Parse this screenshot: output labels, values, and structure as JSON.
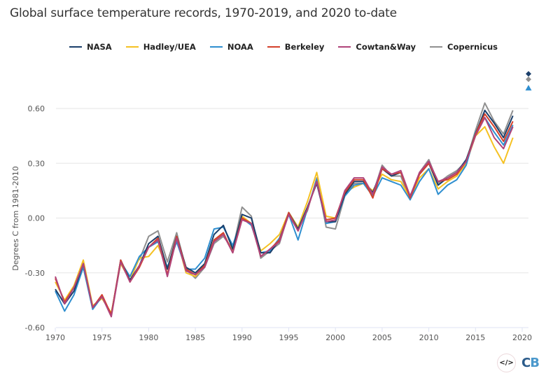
{
  "chart_data": {
    "type": "line",
    "title": "Global surface temperature records, 1970-2019, and 2020 to-date",
    "xlabel": "",
    "ylabel": "Degrees C from 1981-2010",
    "xlim": [
      1970,
      2020
    ],
    "ylim": [
      -0.6,
      0.6
    ],
    "grid": true,
    "legend_position": "top-center",
    "x_ticks": [
      "1970",
      "1975",
      "1980",
      "1985",
      "1990",
      "1995",
      "2000",
      "2005",
      "2010",
      "2015",
      "2020"
    ],
    "y_ticks": [
      "0.60",
      "0.30",
      "0.00",
      "-0.30",
      "-0.60"
    ],
    "x": [
      1970,
      1971,
      1972,
      1973,
      1974,
      1975,
      1976,
      1977,
      1978,
      1979,
      1980,
      1981,
      1982,
      1983,
      1984,
      1985,
      1986,
      1987,
      1988,
      1989,
      1990,
      1991,
      1992,
      1993,
      1994,
      1995,
      1996,
      1997,
      1998,
      1999,
      2000,
      2001,
      2002,
      2003,
      2004,
      2005,
      2006,
      2007,
      2008,
      2009,
      2010,
      2011,
      2012,
      2013,
      2014,
      2015,
      2016,
      2017,
      2018,
      2019
    ],
    "series": [
      {
        "name": "NASA",
        "color": "#1b3f6b",
        "values": [
          -0.39,
          -0.47,
          -0.4,
          -0.25,
          -0.49,
          -0.43,
          -0.53,
          -0.23,
          -0.34,
          -0.26,
          -0.14,
          -0.1,
          -0.28,
          -0.1,
          -0.27,
          -0.3,
          -0.25,
          -0.09,
          -0.04,
          -0.17,
          0.02,
          0.0,
          -0.19,
          -0.19,
          -0.12,
          0.03,
          -0.06,
          0.06,
          0.19,
          -0.02,
          -0.02,
          0.13,
          0.2,
          0.2,
          0.14,
          0.27,
          0.23,
          0.25,
          0.12,
          0.24,
          0.3,
          0.18,
          0.22,
          0.25,
          0.32,
          0.46,
          0.59,
          0.52,
          0.44,
          0.56
        ]
      },
      {
        "name": "Hadley/UEA",
        "color": "#f5c122",
        "values": [
          -0.35,
          -0.45,
          -0.37,
          -0.23,
          -0.48,
          -0.44,
          -0.52,
          -0.25,
          -0.34,
          -0.22,
          -0.21,
          -0.15,
          -0.28,
          -0.11,
          -0.3,
          -0.32,
          -0.26,
          -0.12,
          -0.09,
          -0.18,
          0.01,
          -0.03,
          -0.18,
          -0.14,
          -0.09,
          0.03,
          -0.05,
          0.09,
          0.25,
          0.01,
          0.0,
          0.14,
          0.17,
          0.19,
          0.15,
          0.24,
          0.21,
          0.2,
          0.11,
          0.22,
          0.27,
          0.16,
          0.2,
          0.23,
          0.3,
          0.45,
          0.5,
          0.39,
          0.3,
          0.44
        ]
      },
      {
        "name": "NOAA",
        "color": "#2f8fd0",
        "values": [
          -0.4,
          -0.51,
          -0.42,
          -0.27,
          -0.5,
          -0.43,
          -0.53,
          -0.24,
          -0.32,
          -0.21,
          -0.16,
          -0.13,
          -0.27,
          -0.13,
          -0.28,
          -0.28,
          -0.22,
          -0.06,
          -0.05,
          -0.15,
          0.0,
          -0.04,
          -0.19,
          -0.18,
          -0.11,
          0.02,
          -0.12,
          0.05,
          0.21,
          -0.03,
          -0.02,
          0.12,
          0.18,
          0.19,
          0.12,
          0.22,
          0.2,
          0.18,
          0.1,
          0.2,
          0.27,
          0.13,
          0.18,
          0.21,
          0.29,
          0.47,
          0.55,
          0.47,
          0.4,
          0.51
        ]
      },
      {
        "name": "Berkeley",
        "color": "#d4402a",
        "values": [
          -0.33,
          -0.46,
          -0.38,
          -0.25,
          -0.49,
          -0.42,
          -0.53,
          -0.23,
          -0.35,
          -0.27,
          -0.16,
          -0.11,
          -0.31,
          -0.1,
          -0.28,
          -0.31,
          -0.26,
          -0.12,
          -0.08,
          -0.19,
          0.0,
          -0.03,
          -0.21,
          -0.17,
          -0.12,
          0.03,
          -0.07,
          0.05,
          0.2,
          -0.01,
          0.0,
          0.14,
          0.21,
          0.21,
          0.11,
          0.27,
          0.24,
          0.25,
          0.11,
          0.24,
          0.3,
          0.2,
          0.21,
          0.24,
          0.31,
          0.46,
          0.57,
          0.5,
          0.42,
          0.53
        ]
      },
      {
        "name": "Cowtan&Way",
        "color": "#b0447a",
        "values": [
          -0.32,
          -0.47,
          -0.38,
          -0.25,
          -0.49,
          -0.43,
          -0.54,
          -0.24,
          -0.35,
          -0.26,
          -0.16,
          -0.12,
          -0.32,
          -0.11,
          -0.29,
          -0.31,
          -0.27,
          -0.13,
          -0.09,
          -0.19,
          -0.01,
          -0.03,
          -0.21,
          -0.17,
          -0.13,
          0.02,
          -0.07,
          0.05,
          0.2,
          -0.02,
          -0.01,
          0.15,
          0.22,
          0.22,
          0.13,
          0.28,
          0.24,
          0.26,
          0.12,
          0.25,
          0.31,
          0.2,
          0.22,
          0.25,
          0.31,
          0.45,
          0.55,
          0.44,
          0.38,
          0.5
        ]
      },
      {
        "name": "Copernicus",
        "color": "#909090",
        "values": [
          null,
          null,
          null,
          null,
          null,
          null,
          null,
          null,
          null,
          -0.23,
          -0.1,
          -0.07,
          -0.24,
          -0.08,
          -0.28,
          -0.33,
          -0.27,
          -0.14,
          -0.1,
          -0.17,
          0.06,
          0.01,
          -0.22,
          -0.18,
          -0.14,
          0.03,
          -0.05,
          0.04,
          0.22,
          -0.05,
          -0.06,
          0.12,
          0.19,
          0.19,
          0.13,
          0.29,
          0.23,
          0.23,
          0.1,
          0.25,
          0.32,
          0.19,
          0.23,
          0.26,
          0.31,
          0.48,
          0.63,
          0.53,
          0.46,
          0.59
        ]
      }
    ],
    "markers_2020": [
      {
        "name": "NASA",
        "shape": "diamond",
        "color": "#1b3f6b",
        "x": 2020,
        "value": 0.79
      },
      {
        "name": "Copernicus",
        "shape": "diamond",
        "color": "#909090",
        "x": 2020,
        "value": 0.76
      },
      {
        "name": "NOAA",
        "shape": "triangle",
        "color": "#2f8fd0",
        "x": 2020,
        "value": 0.71
      }
    ]
  },
  "footer": {
    "embed_icon": "code-embed-icon",
    "embed_label": "</>",
    "logo_c": "C",
    "logo_b": "B"
  }
}
